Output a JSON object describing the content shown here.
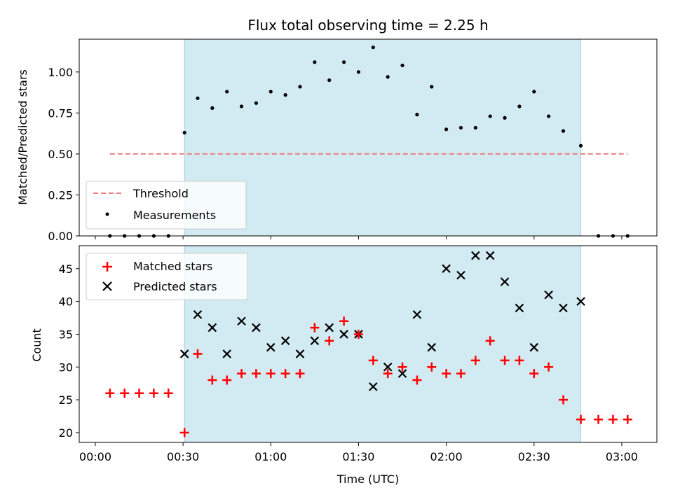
{
  "chart_data": [
    {
      "type": "scatter",
      "title": "Flux total observing time = 2.25 h",
      "xlabel": "",
      "ylabel": "Matched/Predicted stars",
      "xlim_minutes": [
        -5.5,
        192
      ],
      "ylim": [
        0,
        1.2
      ],
      "yticks": [
        0.0,
        0.25,
        0.5,
        0.75,
        1.0
      ],
      "ytick_labels": [
        "0.00",
        "0.25",
        "0.50",
        "0.75",
        "1.00"
      ],
      "xticks_minutes": [
        0,
        30,
        60,
        90,
        120,
        150,
        180
      ],
      "shaded_span_minutes": [
        30.5,
        166
      ],
      "colors": {
        "shade": "#add8e6",
        "threshold": "#f08080",
        "measurements": "#000000"
      },
      "legend": {
        "placement": "lower-left",
        "entries": [
          "Threshold",
          "Measurements"
        ]
      },
      "threshold": {
        "name": "Threshold",
        "y": 0.5,
        "x_range_minutes": [
          5,
          182
        ]
      },
      "measurements": {
        "name": "Measurements",
        "x_minutes": [
          5,
          10,
          15,
          20,
          25,
          30.5,
          35,
          40,
          45,
          50,
          55,
          60,
          65,
          70,
          75,
          80,
          85,
          90,
          95,
          100,
          105,
          110,
          115,
          120,
          125,
          130,
          135,
          140,
          145,
          150,
          155,
          160,
          166,
          172,
          177,
          182
        ],
        "y": [
          0,
          0,
          0,
          0,
          0,
          0.63,
          0.84,
          0.78,
          0.88,
          0.79,
          0.81,
          0.88,
          0.86,
          0.91,
          1.06,
          0.95,
          1.06,
          1.0,
          1.15,
          0.97,
          1.04,
          0.74,
          0.91,
          0.65,
          0.66,
          0.66,
          0.73,
          0.72,
          0.79,
          0.88,
          0.73,
          0.64,
          0.55,
          0,
          0,
          0
        ]
      }
    },
    {
      "type": "scatter",
      "xlabel": "Time (UTC)",
      "ylabel": "Count",
      "xlim_minutes": [
        -5.5,
        192
      ],
      "ylim": [
        18.5,
        48.5
      ],
      "yticks": [
        20,
        25,
        30,
        35,
        40,
        45
      ],
      "ytick_labels": [
        "20",
        "25",
        "30",
        "35",
        "40",
        "45"
      ],
      "xticks_minutes": [
        0,
        30,
        60,
        90,
        120,
        150,
        180
      ],
      "xtick_labels": [
        "00:00",
        "00:30",
        "01:00",
        "01:30",
        "02:00",
        "02:30",
        "03:00"
      ],
      "shaded_span_minutes": [
        30.5,
        166
      ],
      "colors": {
        "shade": "#add8e6",
        "matched": "#ff0000",
        "predicted": "#000000"
      },
      "legend": {
        "placement": "upper-left",
        "entries": [
          "Matched stars",
          "Predicted stars"
        ]
      },
      "series": [
        {
          "name": "Matched stars",
          "marker": "plus",
          "x_minutes": [
            5,
            10,
            15,
            20,
            25,
            30.5,
            35,
            40,
            45,
            50,
            55,
            60,
            65,
            70,
            75,
            80,
            85,
            90,
            95,
            100,
            105,
            110,
            115,
            120,
            125,
            130,
            135,
            140,
            145,
            150,
            155,
            160,
            166,
            172,
            177,
            182
          ],
          "y": [
            26,
            26,
            26,
            26,
            26,
            20,
            32,
            28,
            28,
            29,
            29,
            29,
            29,
            29,
            36,
            34,
            37,
            35,
            31,
            29,
            30,
            28,
            30,
            29,
            29,
            31,
            34,
            31,
            31,
            29,
            30,
            25,
            22,
            22,
            22,
            22
          ]
        },
        {
          "name": "Predicted stars",
          "marker": "x",
          "x_minutes": [
            30.5,
            35,
            40,
            45,
            50,
            55,
            60,
            65,
            70,
            75,
            80,
            85,
            90,
            95,
            100,
            105,
            110,
            115,
            120,
            125,
            130,
            135,
            140,
            145,
            150,
            155,
            160,
            166
          ],
          "y": [
            32,
            38,
            36,
            32,
            37,
            36,
            33,
            34,
            32,
            34,
            36,
            35,
            35,
            27,
            30,
            29,
            38,
            33,
            45,
            44,
            47,
            47,
            43,
            39,
            33,
            41,
            39,
            40
          ]
        }
      ]
    }
  ]
}
